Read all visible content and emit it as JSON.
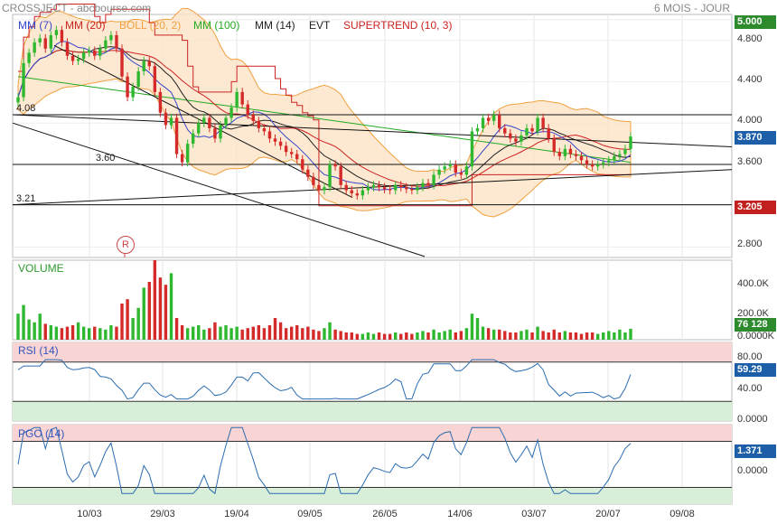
{
  "header": {
    "title": "CROSSJECT - abcbourse.com",
    "period": "6 MOIS - JOUR"
  },
  "legend": [
    {
      "label": "MM (7)",
      "color": "#3344cc"
    },
    {
      "label": "MM (20)",
      "color": "#cc2222"
    },
    {
      "label": "BOLL (20, 2)",
      "color": "#f0a040"
    },
    {
      "label": "MM (100)",
      "color": "#22aa22"
    },
    {
      "label": "MM (14)",
      "color": "#222222"
    },
    {
      "label": "EVT",
      "color": "#222222"
    },
    {
      "label": "SUPERTREND (10, 3)",
      "color": "#cc2222"
    }
  ],
  "price_axis": [
    "5.000",
    "4.800",
    "4.400",
    "4.000",
    "3.600",
    "3.200",
    "2.800"
  ],
  "hlines": [
    {
      "label": "4.08",
      "value": 4.08
    },
    {
      "label": "3.60",
      "value": 3.6
    },
    {
      "label": "3.21",
      "value": 3.21
    }
  ],
  "marker": "R",
  "badges": {
    "price": "3.870",
    "supertrend": "3.205",
    "volume": "76 128",
    "rsi": "59.29",
    "pgo": "1.371"
  },
  "volume_panel": {
    "title": "VOLUME",
    "axis": [
      "400.0K",
      "200.0K",
      "0.0000K"
    ]
  },
  "rsi_panel": {
    "title": "RSI (14)",
    "axis": [
      "80.00",
      "40.00",
      "0.0000"
    ]
  },
  "pgo_panel": {
    "title": "PGO (14)",
    "axis": [
      "0.0000"
    ]
  },
  "x_labels": [
    "10/03",
    "29/03",
    "19/04",
    "09/05",
    "26/05",
    "14/06",
    "03/07",
    "20/07",
    "09/08"
  ],
  "chart_data": {
    "type": "candlestick",
    "title": "CROSSJECT - abcbourse.com",
    "period": "6 MOIS - JOUR",
    "close": [
      4.25,
      4.58,
      4.68,
      4.78,
      4.82,
      4.72,
      4.85,
      4.9,
      4.78,
      4.65,
      4.6,
      4.62,
      4.68,
      4.7,
      4.65,
      4.72,
      4.8,
      4.85,
      4.72,
      4.45,
      4.25,
      4.35,
      4.5,
      4.6,
      4.55,
      4.3,
      4.1,
      3.98,
      4.05,
      3.7,
      3.62,
      3.8,
      3.9,
      4.0,
      4.05,
      3.95,
      3.85,
      3.98,
      4.05,
      4.15,
      4.3,
      4.18,
      4.08,
      4.02,
      3.95,
      3.92,
      3.85,
      3.82,
      3.78,
      3.72,
      3.7,
      3.65,
      3.55,
      3.48,
      3.4,
      3.35,
      3.38,
      3.6,
      3.58,
      3.4,
      3.35,
      3.32,
      3.3,
      3.35,
      3.38,
      3.4,
      3.38,
      3.36,
      3.35,
      3.4,
      3.38,
      3.36,
      3.35,
      3.38,
      3.42,
      3.4,
      3.5,
      3.55,
      3.58,
      3.6,
      3.52,
      3.5,
      3.58,
      3.92,
      3.95,
      4.05,
      4.02,
      4.08,
      3.95,
      3.9,
      3.85,
      3.82,
      3.88,
      3.95,
      3.92,
      4.05,
      3.95,
      3.85,
      3.72,
      3.68,
      3.75,
      3.7,
      3.68,
      3.64,
      3.6,
      3.58,
      3.6,
      3.62,
      3.64,
      3.68,
      3.7,
      3.75,
      3.87
    ],
    "volume": [
      0.18,
      0.24,
      0.14,
      0.12,
      0.18,
      0.11,
      0.1,
      0.09,
      0.08,
      0.09,
      0.1,
      0.12,
      0.09,
      0.08,
      0.09,
      0.08,
      0.07,
      0.1,
      0.09,
      0.25,
      0.28,
      0.15,
      0.22,
      0.36,
      0.4,
      0.55,
      0.43,
      0.38,
      0.46,
      0.15,
      0.1,
      0.08,
      0.09,
      0.1,
      0.07,
      0.08,
      0.12,
      0.09,
      0.1,
      0.08,
      0.09,
      0.07,
      0.08,
      0.09,
      0.1,
      0.08,
      0.1,
      0.15,
      0.12,
      0.08,
      0.09,
      0.1,
      0.08,
      0.09,
      0.07,
      0.06,
      0.08,
      0.12,
      0.07,
      0.06,
      0.05,
      0.05,
      0.04,
      0.04,
      0.05,
      0.04,
      0.05,
      0.04,
      0.04,
      0.05,
      0.04,
      0.05,
      0.04,
      0.05,
      0.06,
      0.05,
      0.07,
      0.05,
      0.06,
      0.07,
      0.05,
      0.06,
      0.08,
      0.18,
      0.15,
      0.09,
      0.08,
      0.07,
      0.07,
      0.06,
      0.05,
      0.05,
      0.06,
      0.07,
      0.05,
      0.09,
      0.06,
      0.05,
      0.07,
      0.05,
      0.06,
      0.05,
      0.05,
      0.04,
      0.05,
      0.05,
      0.04,
      0.05,
      0.06,
      0.05,
      0.07,
      0.05,
      0.076
    ],
    "ma100_end": 3.62,
    "supertrend_end": 3.205,
    "rsi_end": 59.29,
    "pgo_end": 1.371,
    "ylim": [
      2.7,
      5.05
    ]
  }
}
